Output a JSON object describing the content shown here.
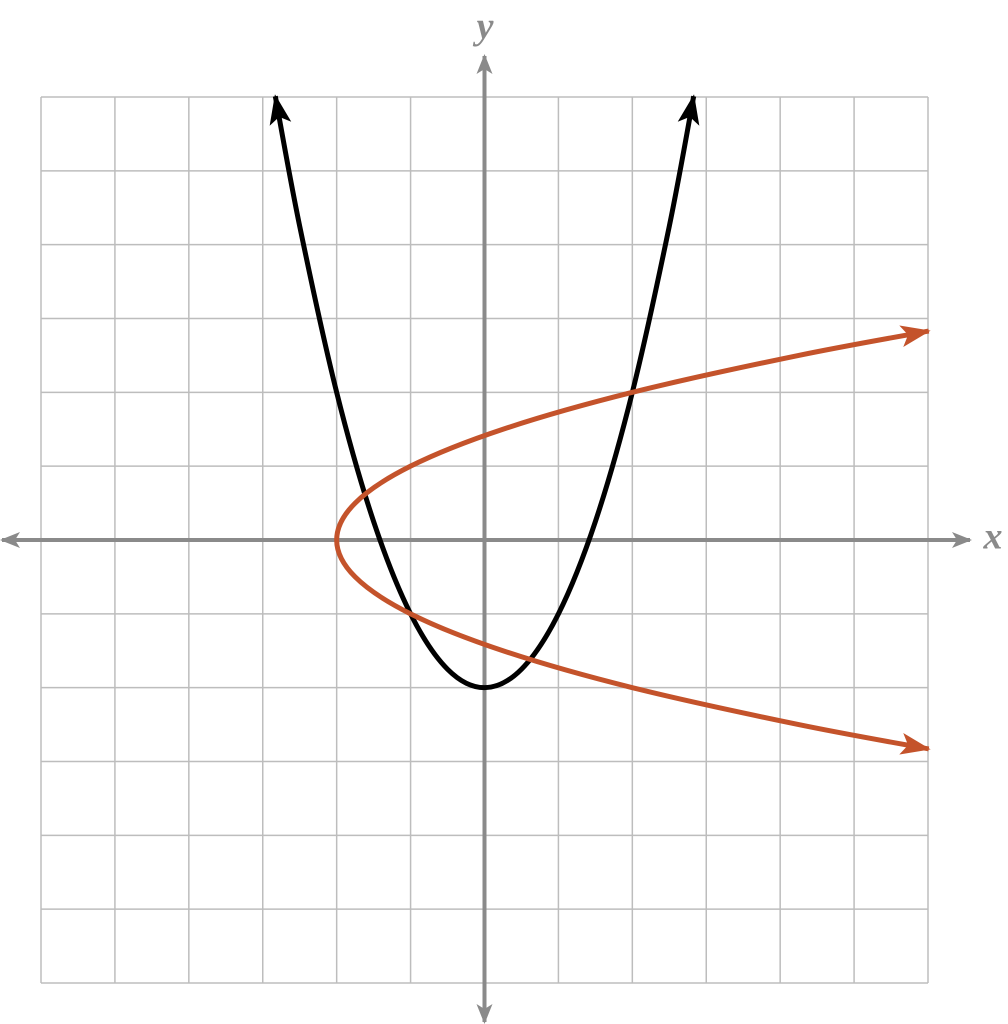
{
  "chart_data": {
    "type": "line",
    "xlabel": "x",
    "ylabel": "y",
    "xlim": [
      -6,
      6
    ],
    "ylim": [
      -6,
      6
    ],
    "xticks": [
      -6,
      -5,
      -4,
      -3,
      -2,
      -1,
      0,
      1,
      2,
      3,
      4,
      5,
      6
    ],
    "yticks": [
      -6,
      -5,
      -4,
      -3,
      -2,
      -1,
      0,
      1,
      2,
      3,
      4,
      5,
      6
    ],
    "grid": true,
    "tick_labels": false,
    "arrows": true,
    "series": [
      {
        "color": "#000000",
        "x": [
          -2.83,
          -2.5,
          -2,
          -1.5,
          -1,
          -0.5,
          0,
          0.5,
          1,
          1.5,
          2,
          2.5,
          2.83
        ],
        "values": [
          6.01,
          4.25,
          2,
          0.25,
          -1,
          -1.75,
          -2,
          -1.75,
          -1,
          0.25,
          2,
          4.25,
          6.01
        ]
      },
      {
        "color": "#c4532b",
        "x": [
          6.01,
          4.25,
          2,
          0.25,
          -1,
          -1.75,
          -2,
          -1.75,
          -1,
          0.25,
          2,
          4.25,
          6.01
        ],
        "values": [
          2.83,
          2.5,
          2,
          1.5,
          1,
          0.5,
          0,
          -0.5,
          -1,
          -1.5,
          -2,
          -2.5,
          -2.83
        ]
      }
    ]
  }
}
